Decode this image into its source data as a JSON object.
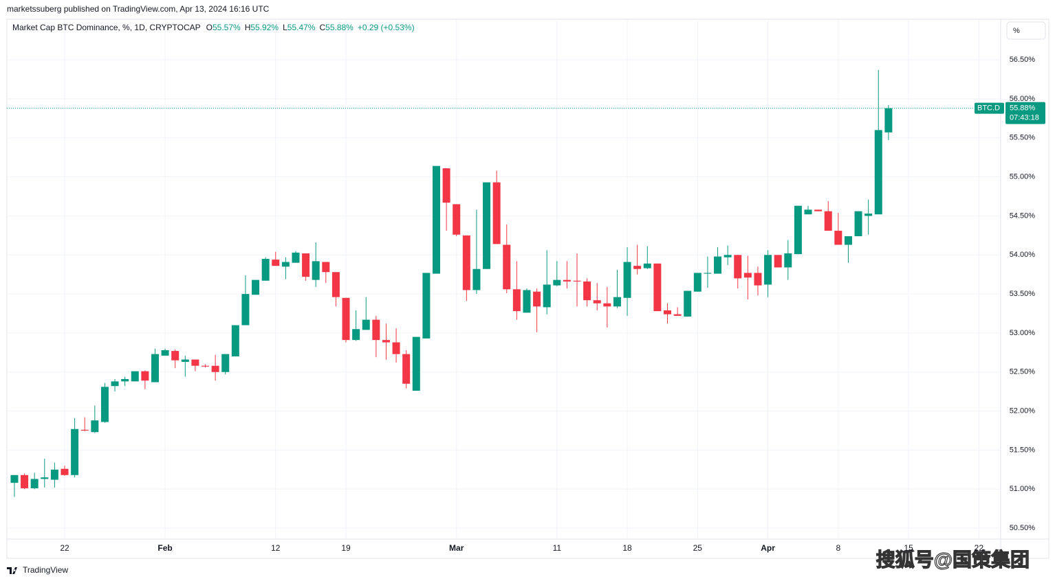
{
  "header": {
    "publisher_line": "marketssuberg published on TradingView.com, Apr 13, 2024 16:16 UTC",
    "symbol": "Market Cap BTC Dominance, %, 1D, CRYPTOCAP",
    "ohlc": [
      {
        "key": "O",
        "value": "55.57%"
      },
      {
        "key": "H",
        "value": "55.92%"
      },
      {
        "key": "L",
        "value": "55.47%"
      },
      {
        "key": "C",
        "value": "55.88%"
      }
    ],
    "change": "+0.29 (+0.53%)"
  },
  "percent_button": "%",
  "footer": "TradingView",
  "watermark": "搜狐号@国策集团",
  "chart_data": {
    "type": "candlestick",
    "up_color": "#089981",
    "down_color": "#f23645",
    "grid": true,
    "x": [
      "2024-01-17",
      "2024-01-18",
      "2024-01-19",
      "2024-01-20",
      "2024-01-21",
      "2024-01-22",
      "2024-01-23",
      "2024-01-24",
      "2024-01-25",
      "2024-01-26",
      "2024-01-27",
      "2024-01-28",
      "2024-01-29",
      "2024-01-30",
      "2024-01-31",
      "2024-02-01",
      "2024-02-02",
      "2024-02-03",
      "2024-02-04",
      "2024-02-05",
      "2024-02-06",
      "2024-02-07",
      "2024-02-08",
      "2024-02-09",
      "2024-02-10",
      "2024-02-11",
      "2024-02-12",
      "2024-02-13",
      "2024-02-14",
      "2024-02-15",
      "2024-02-16",
      "2024-02-17",
      "2024-02-18",
      "2024-02-19",
      "2024-02-20",
      "2024-02-21",
      "2024-02-22",
      "2024-02-23",
      "2024-02-24",
      "2024-02-25",
      "2024-02-26",
      "2024-02-27",
      "2024-02-28",
      "2024-02-29",
      "2024-03-01",
      "2024-03-02",
      "2024-03-03",
      "2024-03-04",
      "2024-03-05",
      "2024-03-06",
      "2024-03-07",
      "2024-03-08",
      "2024-03-09",
      "2024-03-10",
      "2024-03-11",
      "2024-03-12",
      "2024-03-13",
      "2024-03-14",
      "2024-03-15",
      "2024-03-16",
      "2024-03-17",
      "2024-03-18",
      "2024-03-19",
      "2024-03-20",
      "2024-03-21",
      "2024-03-22",
      "2024-03-23",
      "2024-03-24",
      "2024-03-25",
      "2024-03-26",
      "2024-03-27",
      "2024-03-28",
      "2024-03-29",
      "2024-03-30",
      "2024-03-31",
      "2024-04-01",
      "2024-04-02",
      "2024-04-03",
      "2024-04-04",
      "2024-04-05",
      "2024-04-06",
      "2024-04-07",
      "2024-04-08",
      "2024-04-09",
      "2024-04-10",
      "2024-04-11",
      "2024-04-12",
      "2024-04-13"
    ],
    "open": [
      51.08,
      51.18,
      51.01,
      51.13,
      51.12,
      51.26,
      51.18,
      51.76,
      51.73,
      51.86,
      52.32,
      52.38,
      52.38,
      52.51,
      52.37,
      52.71,
      52.77,
      52.63,
      52.66,
      52.58,
      52.58,
      52.5,
      52.7,
      53.1,
      53.49,
      53.67,
      53.94,
      53.85,
      53.9,
      54.02,
      53.68,
      53.91,
      53.78,
      53.45,
      52.91,
      53.04,
      53.17,
      52.91,
      52.88,
      52.73,
      52.26,
      52.93,
      53.76,
      55.11,
      54.65,
      54.25,
      53.55,
      53.82,
      54.93,
      54.13,
      53.56,
      53.26,
      53.53,
      53.33,
      53.61,
      53.68,
      53.67,
      53.66,
      53.42,
      53.38,
      53.34,
      53.45,
      53.86,
      53.83,
      53.89,
      53.29,
      53.24,
      53.21,
      53.53,
      53.76,
      53.76,
      53.97,
      54.0,
      53.77,
      53.77,
      53.62,
      54.0,
      53.84,
      54.01,
      54.52,
      54.58,
      54.56,
      54.31,
      54.13,
      54.24,
      54.5,
      54.52,
      55.57
    ],
    "high": [
      51.18,
      51.2,
      51.21,
      51.39,
      51.34,
      51.3,
      51.91,
      51.92,
      52.07,
      52.36,
      52.41,
      52.44,
      52.51,
      52.52,
      52.8,
      52.8,
      52.79,
      52.71,
      52.66,
      52.6,
      52.72,
      52.73,
      53.1,
      53.74,
      53.68,
      53.97,
      54.04,
      53.97,
      54.05,
      54.02,
      54.16,
      53.91,
      53.78,
      53.45,
      53.29,
      53.46,
      53.22,
      53.12,
      53.06,
      52.78,
      52.95,
      53.77,
      55.14,
      55.11,
      54.65,
      54.25,
      54.58,
      54.93,
      55.08,
      54.39,
      53.92,
      53.57,
      53.57,
      54.06,
      53.92,
      53.92,
      54.02,
      53.7,
      53.64,
      53.59,
      53.81,
      54.1,
      54.13,
      54.11,
      53.89,
      53.38,
      53.33,
      53.54,
      53.77,
      53.98,
      54.1,
      54.12,
      54.0,
      53.99,
      53.85,
      54.06,
      54.0,
      54.19,
      54.63,
      54.63,
      54.58,
      54.69,
      54.54,
      54.24,
      54.56,
      54.71,
      56.37,
      55.92
    ],
    "low": [
      50.9,
      51.0,
      51.0,
      51.02,
      51.02,
      51.17,
      51.15,
      51.74,
      51.72,
      51.85,
      52.25,
      52.32,
      52.38,
      52.28,
      52.37,
      52.71,
      52.55,
      52.44,
      52.51,
      52.56,
      52.39,
      52.47,
      52.7,
      53.1,
      53.49,
      53.67,
      53.86,
      53.69,
      53.9,
      53.67,
      53.59,
      53.64,
      53.34,
      52.88,
      52.9,
      53.04,
      52.69,
      52.66,
      52.62,
      52.29,
      52.26,
      52.93,
      53.76,
      54.31,
      54.24,
      53.41,
      53.5,
      53.82,
      54.14,
      53.51,
      53.17,
      53.26,
      53.01,
      53.24,
      53.6,
      53.57,
      53.34,
      53.34,
      53.29,
      53.07,
      53.32,
      53.22,
      53.75,
      53.82,
      53.28,
      53.12,
      53.22,
      53.21,
      53.53,
      53.58,
      53.76,
      53.87,
      53.57,
      53.43,
      53.48,
      53.46,
      53.84,
      53.68,
      54.01,
      54.52,
      54.56,
      54.31,
      54.13,
      53.9,
      54.24,
      54.26,
      54.52,
      55.47
    ],
    "close": [
      51.18,
      51.01,
      51.13,
      51.15,
      51.25,
      51.18,
      51.77,
      51.75,
      51.88,
      52.31,
      52.38,
      52.41,
      52.51,
      52.39,
      52.73,
      52.78,
      52.65,
      52.66,
      52.58,
      52.57,
      52.5,
      52.73,
      53.1,
      53.5,
      53.68,
      53.95,
      53.86,
      53.91,
      54.03,
      53.72,
      53.92,
      53.78,
      53.46,
      52.91,
      53.05,
      53.17,
      52.91,
      52.88,
      52.73,
      52.35,
      52.95,
      53.77,
      55.14,
      54.67,
      54.26,
      53.55,
      53.82,
      54.93,
      54.14,
      53.56,
      53.28,
      53.55,
      53.34,
      53.62,
      53.68,
      53.66,
      53.66,
      53.42,
      53.38,
      53.34,
      53.46,
      53.91,
      53.82,
      53.89,
      53.28,
      53.24,
      53.22,
      53.54,
      53.77,
      53.77,
      53.98,
      54.0,
      53.7,
      53.71,
      53.61,
      54.0,
      53.84,
      54.02,
      54.63,
      54.58,
      54.56,
      54.31,
      54.13,
      54.24,
      54.56,
      54.53,
      55.6,
      55.88
    ],
    "xlim": [
      "2024-01-16T06:00",
      "2024-04-24T04:00"
    ],
    "xticks": [
      {
        "value": "2024-01-22",
        "label": "22"
      },
      {
        "value": "2024-02-01",
        "label": "Feb"
      },
      {
        "value": "2024-02-12",
        "label": "12"
      },
      {
        "value": "2024-02-19",
        "label": "19"
      },
      {
        "value": "2024-03-01",
        "label": "Mar"
      },
      {
        "value": "2024-03-11",
        "label": "11"
      },
      {
        "value": "2024-03-18",
        "label": "18"
      },
      {
        "value": "2024-03-25",
        "label": "25"
      },
      {
        "value": "2024-04-01",
        "label": "Apr"
      },
      {
        "value": "2024-04-08",
        "label": "8"
      },
      {
        "value": "2024-04-15",
        "label": "15"
      },
      {
        "value": "2024-04-22",
        "label": "22"
      }
    ],
    "ylim": [
      50.36,
      57.02
    ],
    "yticks": [
      {
        "value": 50.5,
        "label": "50.50%"
      },
      {
        "value": 51,
        "label": "51.00%"
      },
      {
        "value": 51.5,
        "label": "51.50%"
      },
      {
        "value": 52,
        "label": "52.00%"
      },
      {
        "value": 52.5,
        "label": "52.50%"
      },
      {
        "value": 53,
        "label": "53.00%"
      },
      {
        "value": 53.5,
        "label": "53.50%"
      },
      {
        "value": 54,
        "label": "54.00%"
      },
      {
        "value": 54.5,
        "label": "54.50%"
      },
      {
        "value": 55,
        "label": "55.00%"
      },
      {
        "value": 55.5,
        "label": "55.50%"
      },
      {
        "value": 56,
        "label": "56.00%"
      },
      {
        "value": 56.5,
        "label": "56.50%"
      }
    ],
    "last_price_label": {
      "symbol": "BTC.D",
      "price": "55.88%",
      "countdown": "07:43:18"
    }
  }
}
